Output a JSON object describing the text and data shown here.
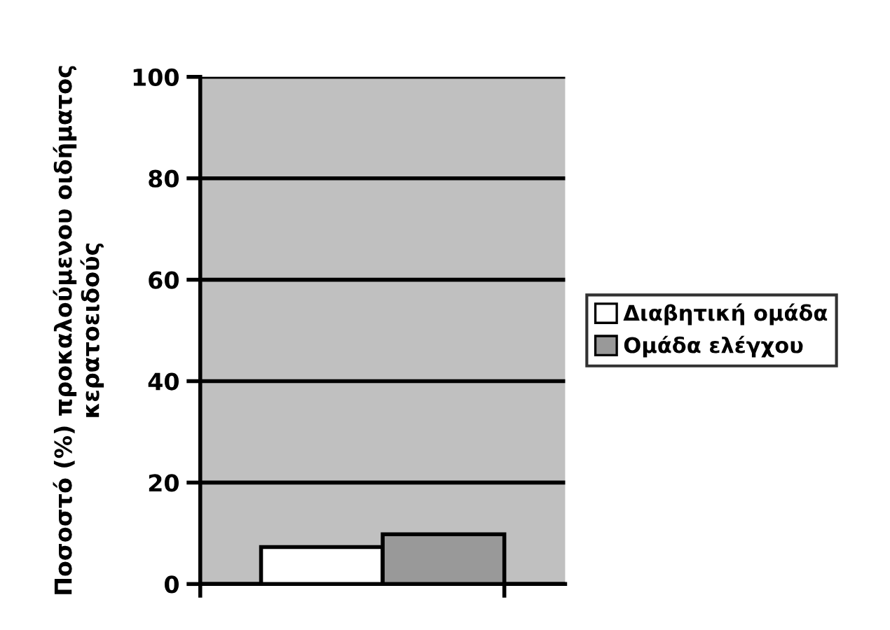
{
  "chart_data": {
    "type": "bar",
    "ylabel": "Ποσοστό (%) προκαλούμενου οιδήματος\nκερατοειδούς",
    "categories": [
      null
    ],
    "series": [
      {
        "name": "Διαβητική ομάδα",
        "color": "#ffffff",
        "values": [
          7.3
        ]
      },
      {
        "name": "Ομάδα ελέγχου",
        "color": "#999999",
        "values": [
          9.8
        ]
      }
    ],
    "ylim": [
      0,
      100
    ],
    "yticks": [
      0,
      20,
      40,
      60,
      80,
      100
    ],
    "grid": "y",
    "legend": "right"
  }
}
